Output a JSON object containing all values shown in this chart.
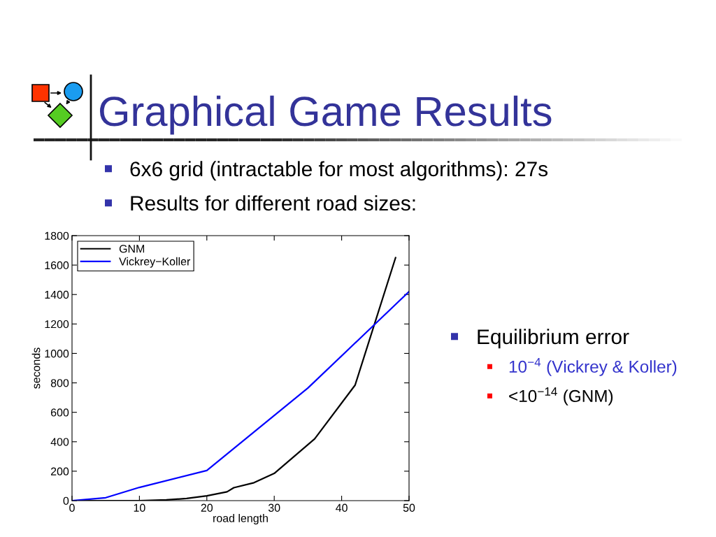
{
  "chart_data": {
    "type": "line",
    "title": "Graphical Game Results",
    "xlabel": "road length",
    "ylabel": "seconds",
    "series": [
      {
        "name": "GNM",
        "color": "#000000",
        "x": [
          0,
          5,
          10,
          14,
          17,
          20,
          23,
          24,
          27,
          30,
          36,
          42,
          48
        ],
        "values": [
          0,
          0,
          0,
          5,
          15,
          33,
          60,
          88,
          122,
          185,
          420,
          785,
          1650
        ]
      },
      {
        "name": "Vickrey−Koller",
        "color": "#0000ff",
        "x": [
          0,
          5,
          10,
          20,
          35,
          50
        ],
        "values": [
          0,
          20,
          90,
          205,
          765,
          1420
        ]
      }
    ],
    "xlim": [
      0,
      50
    ],
    "ylim": [
      0,
      1800
    ],
    "xticks": [
      0,
      10,
      20,
      30,
      40,
      50
    ],
    "yticks": [
      0,
      200,
      400,
      600,
      800,
      1000,
      1200,
      1400,
      1600,
      1800
    ],
    "legend": "top left",
    "annotations": [
      "6x6 grid (intractable for most algorithms): 27s",
      "Results for different road sizes:",
      "Equilibrium error",
      "10$^{−4}$ (Vickrey & Koller)",
      "<10$^{−14}$ (GNM)"
    ]
  }
}
